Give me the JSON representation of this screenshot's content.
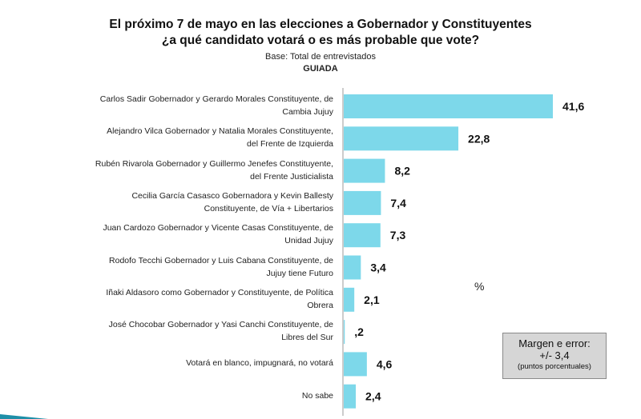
{
  "header": {
    "title_line1": "El próximo 7 de mayo en las elecciones a Gobernador y Constituyentes",
    "title_line2": "¿a qué candidato votará o es más probable que vote?",
    "base": "Base: Total de entrevistados",
    "guided": "GUIADA"
  },
  "unit_label": "%",
  "margin_box": {
    "line1": "Margen e error:",
    "line2": "+/- 3,4",
    "line3": "(puntos porcentuales)"
  },
  "colors": {
    "bar": "#7dd8ea",
    "axis": "#9a9a9a",
    "accent": "#1e8fa8"
  },
  "chart_data": {
    "type": "bar",
    "orientation": "horizontal",
    "title": "El próximo 7 de mayo en las elecciones a Gobernador y Constituyentes ¿a qué candidato votará o es más probable que vote?",
    "categories": [
      [
        "Carlos Sadir Gobernador y Gerardo Morales Constituyente, de",
        "Cambia Jujuy"
      ],
      [
        "Alejandro Vilca Gobernador y Natalia Morales Constituyente,",
        "del Frente de Izquierda"
      ],
      [
        "Rubén Rivarola Gobernador y Guillermo Jenefes Constituyente,",
        "del Frente Justicialista"
      ],
      [
        "Cecilia García Casasco Gobernadora y Kevin Ballesty",
        "Constituyente, de Vía + Libertarios"
      ],
      [
        "Juan Cardozo Gobernador y Vicente Casas Constituyente, de",
        "Unidad Jujuy"
      ],
      [
        "Rodofo Tecchi Gobernador y Luis Cabana Constituyente, de",
        "Jujuy tiene Futuro"
      ],
      [
        "Iñaki Aldasoro como Gobernador y Constituyente, de Política",
        "Obrera"
      ],
      [
        "José Chocobar Gobernador y Yasi Canchi Constituyente, de",
        "Libres del Sur"
      ],
      [
        "Votará en blanco, impugnará, no votará"
      ],
      [
        "No sabe"
      ]
    ],
    "values": [
      41.6,
      22.8,
      8.2,
      7.4,
      7.3,
      3.4,
      2.1,
      0.2,
      4.6,
      2.4
    ],
    "value_labels": [
      "41,6",
      "22,8",
      "8,2",
      "7,4",
      "7,3",
      "3,4",
      "2,1",
      ",2",
      "4,6",
      "2,4"
    ],
    "unit": "%",
    "grid": false,
    "legend": "none"
  }
}
